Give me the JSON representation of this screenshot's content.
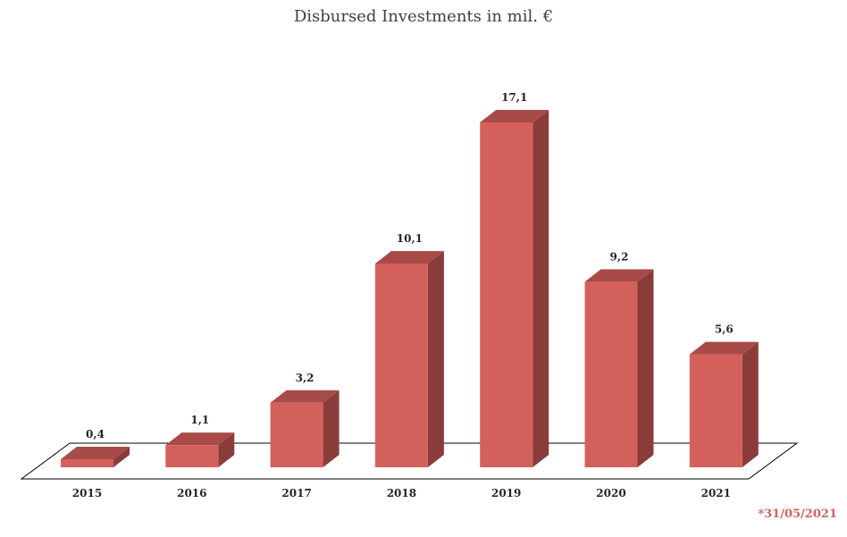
{
  "chart_data": {
    "type": "bar",
    "title": "Disbursed Investments in mil. €",
    "xlabel": "",
    "ylabel": "",
    "categories": [
      "2015",
      "2016",
      "2017",
      "2018",
      "2019",
      "2020",
      "2021"
    ],
    "values": [
      0.4,
      1.1,
      3.2,
      10.1,
      17.1,
      9.2,
      5.6
    ],
    "value_labels": [
      "0,4",
      "1,1",
      "3,2",
      "10,1",
      "17,1",
      "9,2",
      "5,6"
    ],
    "ylim": [
      0,
      17.1
    ],
    "grid": false,
    "legend": "none",
    "style": "3d",
    "footnote": "*31/05/2021",
    "colors": {
      "bar_front": "#d4605c",
      "bar_top": "#a84b48",
      "bar_side": "#8a3c3b",
      "footnote": "#d4605c",
      "floor_line": "#000000"
    }
  }
}
